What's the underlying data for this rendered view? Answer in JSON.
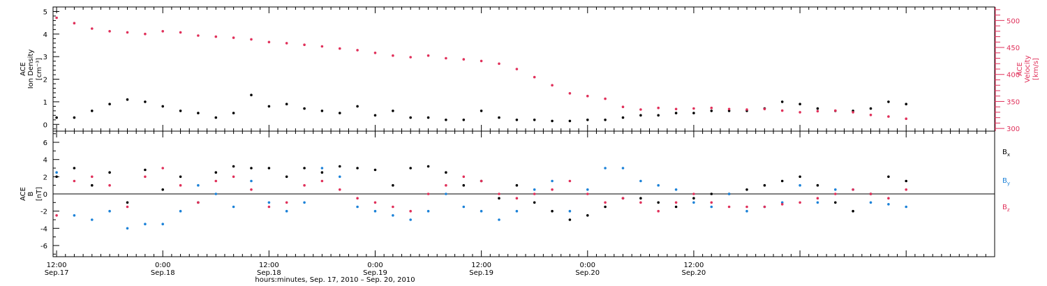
{
  "chart_data": [
    {
      "type": "scatter",
      "panel": "top",
      "y_left": {
        "label_lines": [
          "ACE",
          "Ion Density"
        ],
        "unit": "[cm⁻³]",
        "range": [
          -0.3,
          5.2
        ],
        "ticks": [
          0,
          1,
          2,
          3,
          4,
          5
        ]
      },
      "y_right": {
        "label_lines": [
          "ACE",
          "Velocity"
        ],
        "unit": "[km/s]",
        "range": [
          295,
          525
        ],
        "ticks": [
          300,
          350,
          400,
          450,
          500
        ]
      },
      "series": [
        {
          "name": "Ion Density",
          "axis": "left",
          "color": "#000000",
          "x_hours": [
            0,
            2,
            4,
            6,
            8,
            10,
            12,
            14,
            16,
            18,
            20,
            22,
            24,
            26,
            28,
            30,
            32,
            34,
            36,
            38,
            40,
            42,
            44,
            46,
            48,
            50,
            52,
            54,
            56,
            58,
            60,
            62,
            64,
            66,
            68,
            70,
            72,
            74,
            76,
            78,
            80,
            82,
            84,
            86,
            88,
            90,
            92,
            94,
            96
          ],
          "values": [
            0.3,
            0.3,
            0.6,
            0.9,
            1.1,
            1.0,
            0.8,
            0.6,
            0.5,
            0.3,
            0.5,
            1.3,
            0.8,
            0.9,
            0.7,
            0.6,
            0.5,
            0.8,
            0.4,
            0.6,
            0.3,
            0.3,
            0.2,
            0.2,
            0.6,
            0.3,
            0.2,
            0.2,
            0.15,
            0.15,
            0.2,
            0.2,
            0.3,
            0.4,
            0.4,
            0.5,
            0.5,
            0.6,
            0.6,
            0.6,
            0.7,
            1.0,
            0.9,
            0.7,
            0.6,
            0.6,
            0.7,
            1.0,
            0.9
          ]
        },
        {
          "name": "Velocity",
          "axis": "right",
          "color": "#e0305a",
          "x_hours": [
            0,
            2,
            4,
            6,
            8,
            10,
            12,
            14,
            16,
            18,
            20,
            22,
            24,
            26,
            28,
            30,
            32,
            34,
            36,
            38,
            40,
            42,
            44,
            46,
            48,
            50,
            52,
            54,
            56,
            58,
            60,
            62,
            64,
            66,
            68,
            70,
            72,
            74,
            76,
            78,
            80,
            82,
            84,
            86,
            88,
            90,
            92,
            94,
            96
          ],
          "values": [
            505,
            495,
            485,
            480,
            478,
            475,
            480,
            478,
            472,
            470,
            468,
            465,
            460,
            458,
            455,
            452,
            448,
            445,
            440,
            435,
            432,
            435,
            430,
            428,
            425,
            420,
            410,
            395,
            380,
            365,
            360,
            355,
            340,
            335,
            338,
            336,
            337,
            338,
            336,
            335,
            336,
            333,
            330,
            332,
            333,
            330,
            325,
            322,
            318
          ]
        }
      ]
    },
    {
      "type": "scatter",
      "panel": "bottom",
      "y": {
        "label_lines": [
          "ACE",
          "B"
        ],
        "unit": "[nT]",
        "range": [
          -7.3,
          7.3
        ],
        "ticks": [
          -6,
          -4,
          -2,
          0,
          2,
          4,
          6
        ]
      },
      "legend": {
        "placement": "right",
        "entries": [
          {
            "main": "B",
            "sub": "x",
            "color": "#000000"
          },
          {
            "main": "B",
            "sub": "y",
            "color": "#1c82d8"
          },
          {
            "main": "B",
            "sub": "z",
            "color": "#e0305a"
          }
        ]
      },
      "series": [
        {
          "name": "Bx",
          "color": "#000000",
          "x_hours": [
            0,
            2,
            4,
            6,
            8,
            10,
            12,
            14,
            16,
            18,
            20,
            22,
            24,
            26,
            28,
            30,
            32,
            34,
            36,
            38,
            40,
            42,
            44,
            46,
            48,
            50,
            52,
            54,
            56,
            58,
            60,
            62,
            64,
            66,
            68,
            70,
            72,
            74,
            76,
            78,
            80,
            82,
            84,
            86,
            88,
            90,
            92,
            94,
            96
          ],
          "values": [
            2.0,
            3.0,
            1.0,
            2.5,
            -1.0,
            2.8,
            0.5,
            2.0,
            -1.0,
            2.5,
            3.2,
            3.0,
            3.0,
            2.0,
            3.0,
            2.5,
            3.2,
            3.0,
            2.8,
            1.0,
            3.0,
            3.2,
            2.5,
            1.0,
            1.5,
            -0.5,
            1.0,
            -1.0,
            -2.0,
            -3.0,
            -2.5,
            -1.5,
            -0.5,
            -0.5,
            -1.0,
            -1.5,
            -0.5,
            0.0,
            0.0,
            0.5,
            1.0,
            1.5,
            2.0,
            1.0,
            -1.0,
            -2.0,
            0.0,
            2.0,
            1.5
          ]
        },
        {
          "name": "By",
          "color": "#1c82d8",
          "x_hours": [
            0,
            2,
            4,
            6,
            8,
            10,
            12,
            14,
            16,
            18,
            20,
            22,
            24,
            26,
            28,
            30,
            32,
            34,
            36,
            38,
            40,
            42,
            44,
            46,
            48,
            50,
            52,
            54,
            56,
            58,
            60,
            62,
            64,
            66,
            68,
            70,
            72,
            74,
            76,
            78,
            80,
            82,
            84,
            86,
            88,
            90,
            92,
            94,
            96
          ],
          "values": [
            2.5,
            -2.5,
            -3.0,
            -2.0,
            -4.0,
            -3.5,
            -3.5,
            -2.0,
            1.0,
            0.0,
            -1.5,
            1.5,
            -1.0,
            -2.0,
            -1.0,
            3.0,
            2.0,
            -1.5,
            -2.0,
            -2.5,
            -3.0,
            -2.0,
            0.0,
            -1.5,
            -2.0,
            -3.0,
            -2.0,
            0.5,
            1.5,
            -2.0,
            0.5,
            3.0,
            3.0,
            1.5,
            1.0,
            0.5,
            -1.0,
            -1.5,
            0.0,
            -2.0,
            -1.5,
            -1.0,
            1.0,
            -1.0,
            0.5,
            0.5,
            -1.0,
            -1.2,
            -1.5
          ]
        },
        {
          "name": "Bz",
          "color": "#e0305a",
          "x_hours": [
            0,
            2,
            4,
            6,
            8,
            10,
            12,
            14,
            16,
            18,
            20,
            22,
            24,
            26,
            28,
            30,
            32,
            34,
            36,
            38,
            40,
            42,
            44,
            46,
            48,
            50,
            52,
            54,
            56,
            58,
            60,
            62,
            64,
            66,
            68,
            70,
            72,
            74,
            76,
            78,
            80,
            82,
            84,
            86,
            88,
            90,
            92,
            94,
            96
          ],
          "values": [
            -2.5,
            1.5,
            2.0,
            1.0,
            -1.5,
            2.0,
            3.0,
            1.0,
            -1.0,
            1.5,
            2.0,
            0.5,
            -1.5,
            -1.0,
            1.0,
            1.5,
            0.5,
            -0.5,
            -1.0,
            -1.5,
            -2.0,
            0.0,
            1.0,
            2.0,
            1.5,
            0.0,
            -0.5,
            0.0,
            0.5,
            1.5,
            0.0,
            -1.0,
            -0.5,
            -1.0,
            -2.0,
            -1.0,
            0.0,
            -1.0,
            -1.5,
            -1.5,
            -1.5,
            -1.2,
            -1.0,
            -0.5,
            0.0,
            0.5,
            0.0,
            -0.5,
            0.5
          ]
        }
      ]
    }
  ],
  "x_axis": {
    "title": "hours:minutes, Sep. 17, 2010 – Sep. 20, 2010",
    "range_hours": [
      -0.4,
      106
    ],
    "major_hours": [
      0,
      12,
      24,
      36,
      48,
      60,
      72,
      84,
      96
    ],
    "minor_step_hours": 1,
    "tick_labels": [
      {
        "hour": 0,
        "line1": "12:00",
        "line2": "Sep.17"
      },
      {
        "hour": 12,
        "line1": "0:00",
        "line2": "Sep.18"
      },
      {
        "hour": 24,
        "line1": "12:00",
        "line2": "Sep.18"
      },
      {
        "hour": 36,
        "line1": "0:00",
        "line2": "Sep.19"
      },
      {
        "hour": 48,
        "line1": "12:00",
        "line2": "Sep.19"
      },
      {
        "hour": 60,
        "line1": "0:00",
        "line2": "Sep.20"
      },
      {
        "hour": 72,
        "line1": "12:00",
        "line2": "Sep.20"
      }
    ]
  }
}
